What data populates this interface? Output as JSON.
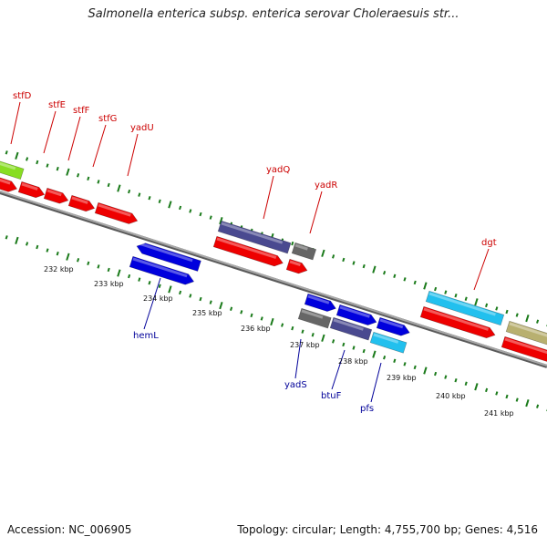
{
  "title": "Salmonella enterica subsp. enterica serovar Choleraesuis str...",
  "footer": {
    "accession": "Accession: NC_006905",
    "summary": "Topology: circular; Length: 4,755,700 bp; Genes: 4,516"
  },
  "colors": {
    "backbone": "#8a8a8a",
    "tick": "#1a7a1a",
    "upper_label": "#cc0000",
    "lower_label": "#000099",
    "cds_red": "#ee0000",
    "cds_blue": "#0000dd",
    "purple": "#4a4a90",
    "gray": "#666666",
    "cyan": "#22c0ee",
    "khaki": "#b8b070",
    "green": "#88dd22"
  },
  "position_labels": [
    "232 kbp",
    "233 kbp",
    "234 kbp",
    "235 kbp",
    "236 kbp",
    "237 kbp",
    "238 kbp",
    "239 kbp",
    "240 kbp",
    "241 kbp"
  ],
  "upper_genes": [
    "stfD",
    "stfE",
    "stfF",
    "stfG",
    "yadU",
    "yadQ",
    "yadR",
    "dgt"
  ],
  "lower_genes": [
    "hemL",
    "yadS",
    "btuF",
    "pfs"
  ]
}
